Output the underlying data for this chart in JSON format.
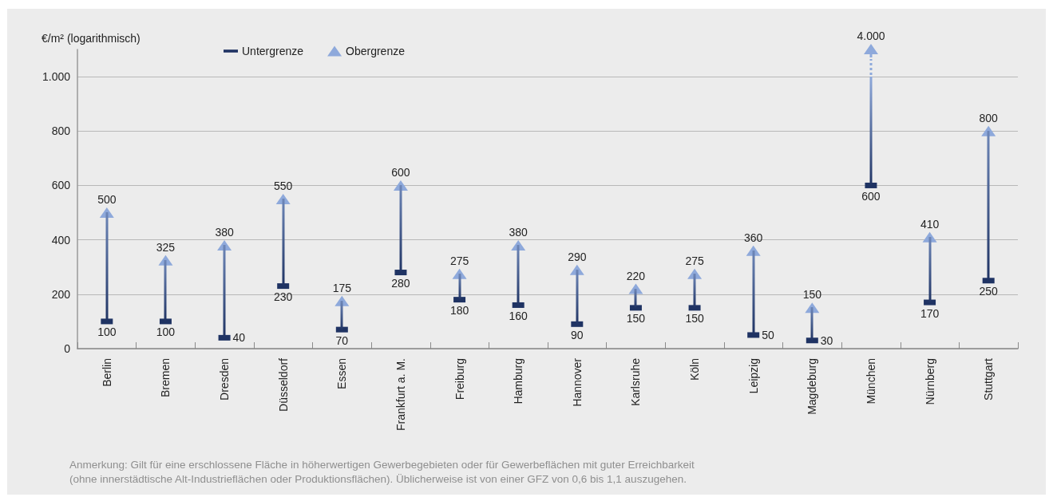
{
  "chart_data": {
    "type": "bar",
    "ylabel": "€/m² (logarithmisch)",
    "categories": [
      "Berlin",
      "Bremen",
      "Dresden",
      "Düsseldorf",
      "Essen",
      "Frankfurt a. M.",
      "Freiburg",
      "Hamburg",
      "Hannover",
      "Karlsruhe",
      "Köln",
      "Leipzig",
      "Magdeburg",
      "München",
      "Nürnberg",
      "Stuttgart"
    ],
    "series": [
      {
        "base": [
          100,
          100,
          40,
          230,
          70,
          280,
          180,
          160,
          90,
          150,
          150,
          50,
          30,
          null,
          170,
          250
        ],
        "values": [
          400,
          225,
          340,
          320,
          105,
          320,
          95,
          220,
          200,
          70,
          125,
          310,
          120,
          null,
          240,
          550
        ]
      },
      {
        "name": "Untergrenze",
        "type": "scatter",
        "color": "#1f3363",
        "values": [
          100,
          100,
          40,
          230,
          70,
          280,
          180,
          160,
          90,
          150,
          150,
          50,
          30,
          600,
          170,
          250
        ],
        "value_labels": [
          "100",
          "100",
          "40",
          "230",
          "70",
          "280",
          "180",
          "160",
          "90",
          "150",
          "150",
          "50",
          "30",
          "600",
          "170",
          "250"
        ]
      },
      {
        "name": "Obergrenze",
        "type": "scatter",
        "marker": "triangle",
        "color": "#8ea9db",
        "values": [
          500,
          325,
          380,
          550,
          175,
          600,
          275,
          380,
          290,
          220,
          275,
          360,
          150,
          null,
          410,
          800
        ],
        "value_labels": [
          "500",
          "325",
          "380",
          "550",
          "175",
          "600",
          "275",
          "380",
          "290",
          "220",
          "275",
          "360",
          "150",
          null,
          "410",
          "800"
        ]
      }
    ],
    "ylim": [
      0,
      1100
    ],
    "yticks": [
      0,
      200,
      400,
      600,
      800,
      {
        "value": 1000,
        "label": "1.000"
      }
    ],
    "grid": "y",
    "legend": "top left",
    "annotations": [
      "4.000",
      "Anmerkung: Gilt für eine erschlossene Fläche in höherwertigen Gewerbegebieten oder für Gewerbeflächen mit guter Erreichbarkeit\n(ohne innerstädtische Alt-Industrieflächen oder Produktionsflächen). Üblicherweise ist von einer GFZ von 0,6 bis 1,1 auszugehen."
    ]
  }
}
